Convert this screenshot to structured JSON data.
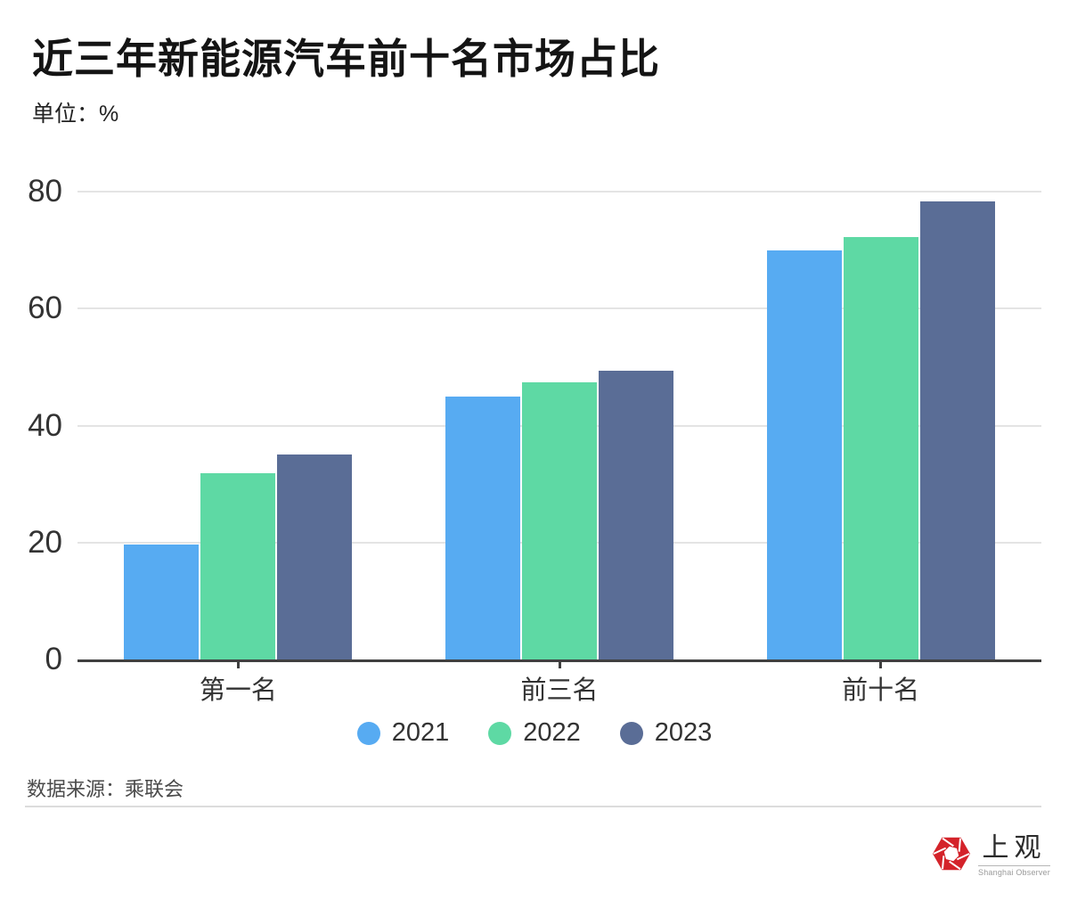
{
  "page": {
    "title": "近三年新能源汽车前十名市场占比",
    "unit_label": "单位：%",
    "source_label": "数据来源：乘联会",
    "logo": {
      "cn": "上观",
      "en": "Shanghai Observer"
    }
  },
  "colors": {
    "series_2021": "#57abf2",
    "series_2022": "#5ed9a4",
    "series_2023": "#5a6d96",
    "axis_line": "#404040",
    "gridline": "#e4e4e4",
    "logo_red": "#d4232a"
  },
  "chart_data": {
    "type": "bar",
    "title": "近三年新能源汽车前十名市场占比",
    "ylabel": "单位：%",
    "xlabel": "",
    "categories": [
      "第一名",
      "前三名",
      "前十名"
    ],
    "series": [
      {
        "name": "2021",
        "color": "#57abf2",
        "values": [
          19.6,
          44.9,
          69.9
        ]
      },
      {
        "name": "2022",
        "color": "#5ed9a4",
        "values": [
          31.8,
          47.4,
          72.2
        ]
      },
      {
        "name": "2023",
        "color": "#5a6d96",
        "values": [
          35.0,
          49.4,
          78.3
        ]
      }
    ],
    "ylim": [
      0,
      80
    ],
    "yticks": [
      0,
      20,
      40,
      60,
      80
    ],
    "grid": true,
    "legend_position": "bottom"
  }
}
